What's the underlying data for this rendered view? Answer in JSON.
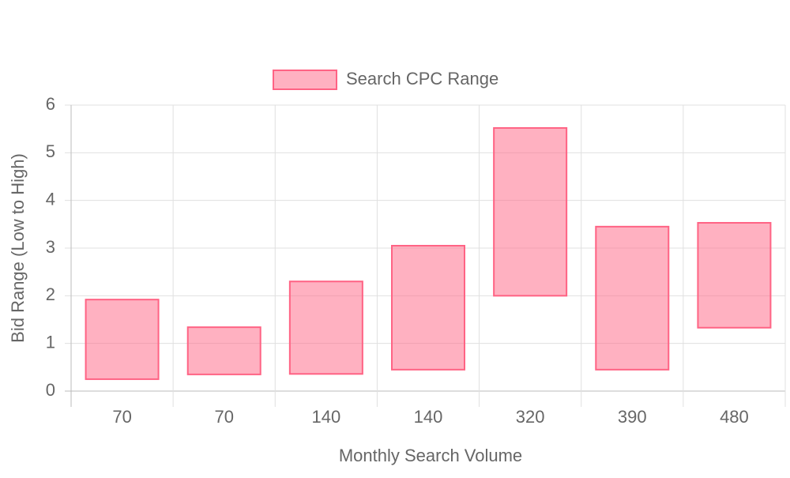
{
  "chart_data": {
    "type": "floating-bar",
    "x_label": "Monthly Search Volume",
    "y_label": "Bid Range (Low to High)",
    "categories": [
      "70",
      "70",
      "140",
      "140",
      "320",
      "390",
      "480"
    ],
    "series": [
      {
        "name": "Search CPC Range",
        "color": "rgb(255, 99, 132)",
        "low": [
          0.25,
          0.35,
          0.36,
          0.45,
          2.0,
          0.45,
          1.33
        ],
        "high": [
          1.92,
          1.34,
          2.3,
          3.05,
          5.52,
          3.45,
          3.53
        ]
      }
    ],
    "ylim": [
      0,
      6
    ],
    "yticks": [
      0,
      1,
      2,
      3,
      4,
      5,
      6
    ],
    "grid": true,
    "legend": "top"
  }
}
